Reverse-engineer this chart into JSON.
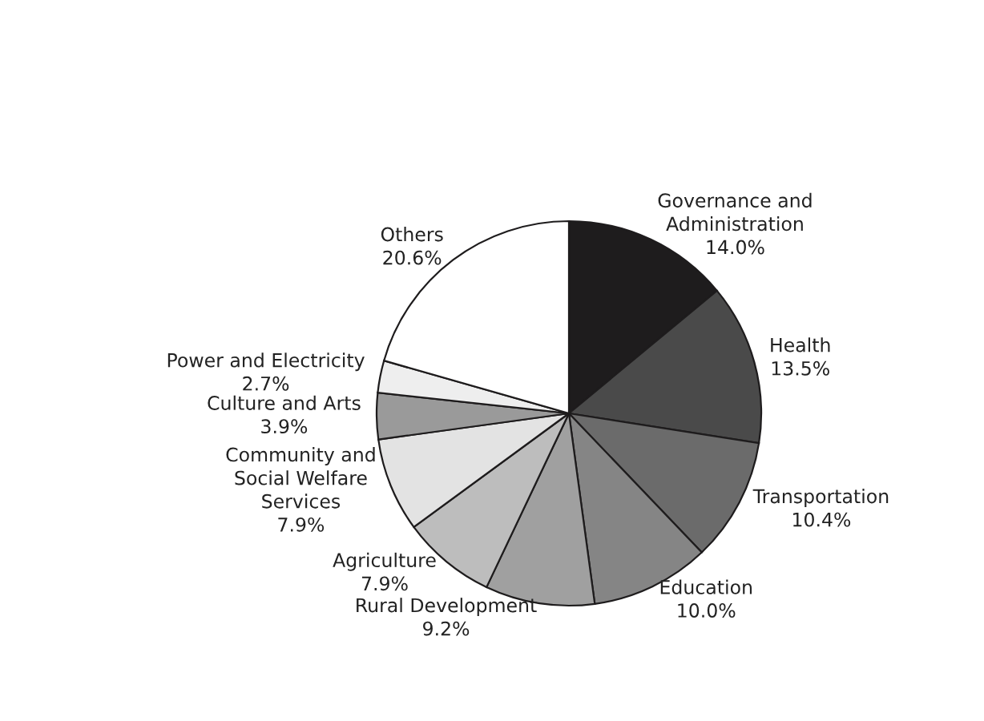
{
  "chart_data": {
    "type": "pie",
    "categories": [
      "Governance and\nAdministration",
      "Health",
      "Transportation",
      "Education",
      "Rural Development",
      "Agriculture",
      "Community and\nSocial Welfare\nServices",
      "Culture and Arts",
      "Power and Electricity",
      "Others"
    ],
    "values": [
      14.0,
      13.5,
      10.4,
      10.0,
      9.2,
      7.9,
      7.9,
      3.9,
      2.7,
      20.6
    ],
    "value_labels": [
      "14.0%",
      "13.5%",
      "10.4%",
      "10.0%",
      "9.2%",
      "7.9%",
      "7.9%",
      "3.9%",
      "2.7%",
      "20.6%"
    ],
    "colors": [
      "#1e1c1d",
      "#4a4a4a",
      "#6b6b6b",
      "#858585",
      "#a0a0a0",
      "#bdbdbd",
      "#e3e3e3",
      "#9a9a9a",
      "#eeeeee",
      "#ffffff"
    ]
  }
}
